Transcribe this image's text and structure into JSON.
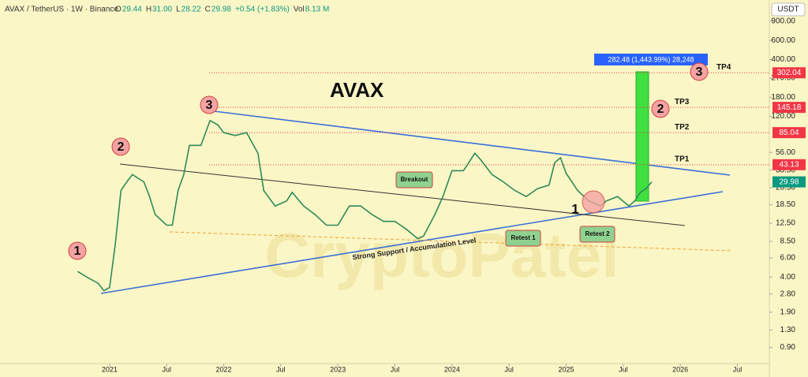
{
  "chart_data": {
    "type": "line",
    "title": "AVAX",
    "symbol": "AVAX / TetherUS · 1W · Binance",
    "header_fields": [
      {
        "label": "O",
        "value": "29.44"
      },
      {
        "label": "H",
        "value": "31.00"
      },
      {
        "label": "L",
        "value": "28.22"
      },
      {
        "label": "C",
        "value": "29.98"
      },
      {
        "label": "",
        "value": "+0.54 (+1.83%)"
      },
      {
        "label": "Vol",
        "value": "8.13 M"
      }
    ],
    "currency": "USDT",
    "log_scale": true,
    "xlim": [
      2020.04,
      2026.78
    ],
    "xticks": [
      {
        "value": 2021,
        "label": "2021"
      },
      {
        "value": 2021.5,
        "label": "Jul"
      },
      {
        "value": 2022,
        "label": "2022"
      },
      {
        "value": 2022.5,
        "label": "Jul"
      },
      {
        "value": 2023,
        "label": "2023"
      },
      {
        "value": 2023.5,
        "label": "Jul"
      },
      {
        "value": 2024,
        "label": "2024"
      },
      {
        "value": 2024.5,
        "label": "Jul"
      },
      {
        "value": 2025,
        "label": "2025"
      },
      {
        "value": 2025.5,
        "label": "Jul"
      },
      {
        "value": 2026,
        "label": "2026"
      },
      {
        "value": 2026.5,
        "label": "Jul"
      }
    ],
    "ylim": [
      0.64,
      1410
    ],
    "yticks": [
      {
        "value": 900,
        "label": "900.00"
      },
      {
        "value": 600,
        "label": "600.00"
      },
      {
        "value": 400,
        "label": "400.00"
      },
      {
        "value": 270,
        "label": "270.00"
      },
      {
        "value": 180,
        "label": "180.00"
      },
      {
        "value": 120,
        "label": "120.00"
      },
      {
        "value": 56,
        "label": "56.00"
      },
      {
        "value": 38.5,
        "label": "38.50"
      },
      {
        "value": 26.5,
        "label": "26.50"
      },
      {
        "value": 18.5,
        "label": "18.50"
      },
      {
        "value": 12.5,
        "label": "12.50"
      },
      {
        "value": 8.5,
        "label": "8.50"
      },
      {
        "value": 6,
        "label": "6.00"
      },
      {
        "value": 4,
        "label": "4.00"
      },
      {
        "value": 2.8,
        "label": "2.80"
      },
      {
        "value": 1.9,
        "label": "1.90"
      },
      {
        "value": 1.3,
        "label": "1.30"
      },
      {
        "value": 0.9,
        "label": "0.90"
      }
    ],
    "x": [
      2020.72,
      2020.8,
      2020.9,
      2020.95,
      2021.0,
      2021.05,
      2021.1,
      2021.15,
      2021.2,
      2021.3,
      2021.35,
      2021.4,
      2021.5,
      2021.55,
      2021.6,
      2021.65,
      2021.7,
      2021.8,
      2021.88,
      2021.95,
      2022.0,
      2022.1,
      2022.2,
      2022.3,
      2022.35,
      2022.45,
      2022.55,
      2022.6,
      2022.7,
      2022.8,
      2022.9,
      2023.0,
      2023.1,
      2023.2,
      2023.3,
      2023.4,
      2023.5,
      2023.6,
      2023.7,
      2023.75,
      2023.85,
      2023.92,
      2024.0,
      2024.1,
      2024.2,
      2024.25,
      2024.35,
      2024.45,
      2024.55,
      2024.65,
      2024.75,
      2024.85,
      2024.9,
      2024.95,
      2025.0,
      2025.1,
      2025.2,
      2025.3,
      2025.35,
      2025.45,
      2025.55,
      2025.6,
      2025.65,
      2025.7,
      2025.75
    ],
    "series": [
      {
        "color": "#2e8b57",
        "values": [
          4.5,
          4.0,
          3.5,
          3.0,
          3.2,
          8,
          25,
          30,
          35,
          30,
          22,
          15,
          12,
          12,
          25,
          35,
          65,
          65,
          110,
          100,
          85,
          80,
          85,
          55,
          25,
          18,
          20,
          24,
          18,
          15,
          12,
          12,
          18,
          18,
          15,
          13,
          13,
          11,
          9,
          9.5,
          15,
          22,
          38,
          38,
          55,
          48,
          35,
          30,
          25,
          22,
          26,
          28,
          45,
          50,
          36,
          25,
          20,
          18,
          20,
          22,
          18,
          20,
          24,
          26,
          29.98
        ]
      }
    ],
    "price_levels": [
      {
        "value": 302.04,
        "name": "TP4",
        "color": "#f23645"
      },
      {
        "value": 145.18,
        "name": "TP3",
        "color": "#f23645"
      },
      {
        "value": 85.04,
        "name": "TP2",
        "color": "#f23645"
      },
      {
        "value": 43.13,
        "name": "TP1",
        "color": "#f23645"
      }
    ],
    "last_price": {
      "value": 29.98,
      "color": "#089981"
    },
    "measure": "282.48 (1,443.99%) 28,248",
    "annotations": [
      "Breakout",
      "Retest 1",
      "Retest 2",
      "Strong Support / Accumulation Level",
      "1",
      "2",
      "3",
      "1",
      "2",
      "3"
    ],
    "watermark": "CryptoPatel"
  }
}
